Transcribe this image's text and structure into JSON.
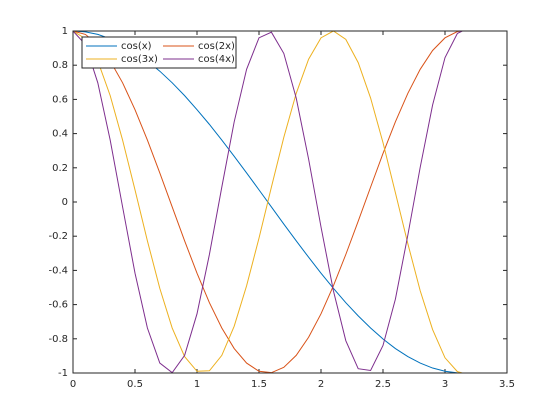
{
  "chart_data": {
    "type": "line",
    "x": [
      0,
      0.1,
      0.2,
      0.3,
      0.4,
      0.5,
      0.6,
      0.7,
      0.8,
      0.9,
      1.0,
      1.1,
      1.2,
      1.3,
      1.4,
      1.5,
      1.6,
      1.7,
      1.8,
      1.9,
      2.0,
      2.1,
      2.2,
      2.3,
      2.4,
      2.5,
      2.6,
      2.7,
      2.8,
      2.9,
      3.0,
      3.1,
      3.14
    ],
    "series": [
      {
        "name": "cos(x)",
        "color": "#0072bd",
        "values": [
          1,
          0.995,
          0.98,
          0.955,
          0.921,
          0.878,
          0.825,
          0.765,
          0.697,
          0.622,
          0.54,
          0.454,
          0.362,
          0.267,
          0.17,
          0.071,
          -0.029,
          -0.129,
          -0.227,
          -0.323,
          -0.416,
          -0.505,
          -0.589,
          -0.666,
          -0.737,
          -0.801,
          -0.857,
          -0.904,
          -0.942,
          -0.971,
          -0.99,
          -0.999,
          -1
        ]
      },
      {
        "name": "cos(2x)",
        "color": "#d95319",
        "values": [
          1,
          0.98,
          0.921,
          0.825,
          0.697,
          0.54,
          0.362,
          0.17,
          -0.029,
          -0.227,
          -0.416,
          -0.589,
          -0.737,
          -0.857,
          -0.942,
          -0.99,
          -0.998,
          -0.967,
          -0.897,
          -0.791,
          -0.654,
          -0.49,
          -0.307,
          -0.112,
          0.087,
          0.284,
          0.469,
          0.635,
          0.776,
          0.886,
          0.96,
          0.997,
          1
        ]
      },
      {
        "name": "cos(3x)",
        "color": "#edb120",
        "values": [
          1,
          0.955,
          0.825,
          0.622,
          0.362,
          0.071,
          -0.227,
          -0.505,
          -0.737,
          -0.904,
          -0.99,
          -0.987,
          -0.897,
          -0.726,
          -0.49,
          -0.211,
          0.087,
          0.378,
          0.635,
          0.835,
          0.96,
          1,
          0.951,
          0.815,
          0.608,
          0.347,
          0.054,
          -0.243,
          -0.519,
          -0.746,
          -0.911,
          -0.992,
          -1
        ]
      },
      {
        "name": "cos(4x)",
        "color": "#7e2f8e",
        "values": [
          1,
          0.921,
          0.697,
          0.362,
          -0.029,
          -0.416,
          -0.737,
          -0.942,
          -0.998,
          -0.897,
          -0.654,
          -0.307,
          0.087,
          0.469,
          0.776,
          0.96,
          0.993,
          0.869,
          0.608,
          0.251,
          -0.146,
          -0.519,
          -0.811,
          -0.975,
          -0.985,
          -0.839,
          -0.568,
          -0.195,
          0.203,
          0.567,
          0.844,
          0.986,
          1
        ]
      }
    ],
    "xlim": [
      0,
      3.5
    ],
    "xticks": [
      0,
      0.5,
      1,
      1.5,
      2,
      2.5,
      3,
      3.5
    ],
    "ylim": [
      -1,
      1
    ],
    "yticks": [
      -1,
      -0.8,
      -0.6,
      -0.4,
      -0.2,
      0,
      0.2,
      0.4,
      0.6,
      0.8,
      1
    ],
    "grid": false,
    "legend_position": "upper-left",
    "legend_columns": 2
  }
}
